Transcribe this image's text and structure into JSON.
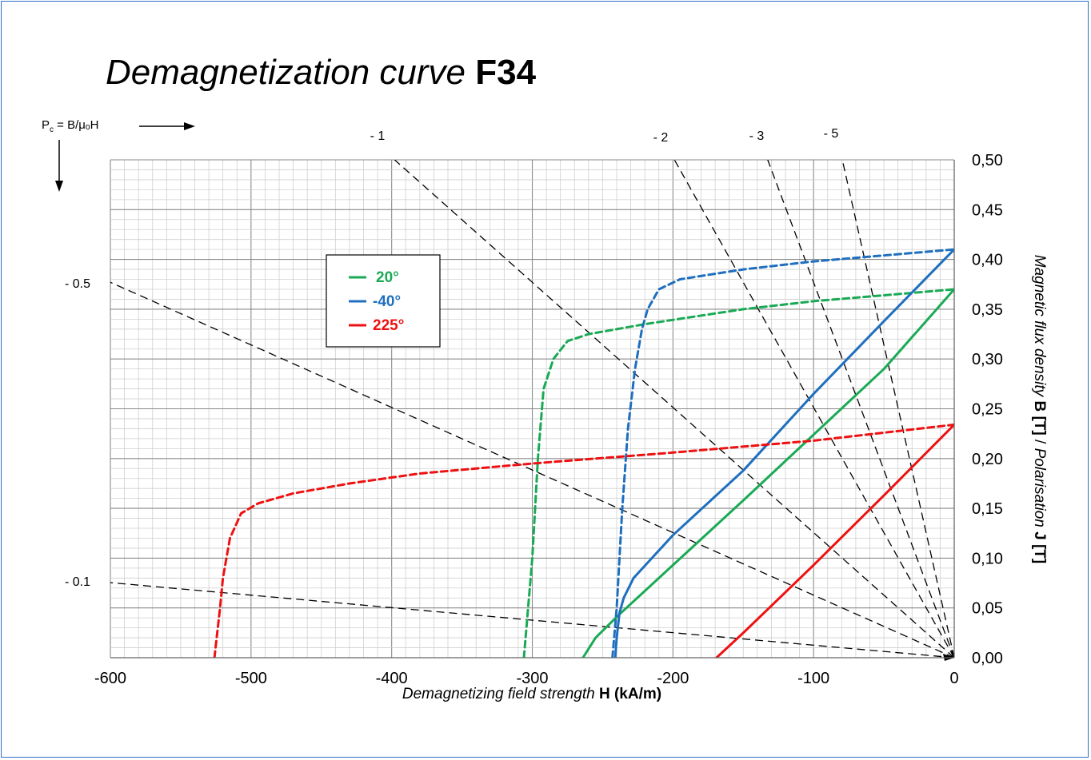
{
  "title": {
    "italic": "Demagnetization curve",
    "bold": "F34"
  },
  "pc_label": {
    "prefix": "P",
    "sub": "c",
    "suffix": " = B/μₒH"
  },
  "chart_data": {
    "type": "line",
    "title": "Demagnetization curve F34",
    "xlabel": {
      "italic": "Demagnetizing field strength ",
      "bold": "H (kA/m)"
    },
    "ylabel": {
      "italic1": "Magnetic flux density ",
      "bold1": "B [T]",
      "mid": " / ",
      "italic2": "Polarisation ",
      "bold2": "J [T]"
    },
    "xlim": [
      -600,
      0
    ],
    "ylim": [
      0,
      0.5
    ],
    "x_ticks": [
      "-600",
      "-500",
      "-400",
      "-300",
      "-200",
      "-100",
      "0"
    ],
    "y_ticks": [
      "0,00",
      "0,05",
      "0,10",
      "0,15",
      "0,20",
      "0,25",
      "0,30",
      "0,35",
      "0,40",
      "0,45",
      "0,50"
    ],
    "grid": true,
    "legend": {
      "placement": "upper-left",
      "entries": [
        {
          "name": "20°",
          "color": "#1aaa55"
        },
        {
          "name": "-40°",
          "color": "#1f6fbf"
        },
        {
          "name": "225°",
          "color": "#ee1111"
        }
      ]
    },
    "series": [
      {
        "name": "20°",
        "kind": "B",
        "style": "solid",
        "color": "#1aaa55",
        "points": [
          [
            -264,
            0
          ],
          [
            -255,
            0.02
          ],
          [
            -240,
            0.041
          ],
          [
            -200,
            0.093
          ],
          [
            -150,
            0.158
          ],
          [
            -100,
            0.224
          ],
          [
            -50,
            0.29
          ],
          [
            0,
            0.37
          ]
        ]
      },
      {
        "name": "20°",
        "kind": "J",
        "style": "dashed",
        "color": "#1aaa55",
        "points": [
          [
            -306,
            0
          ],
          [
            -300,
            0.1
          ],
          [
            -296,
            0.2
          ],
          [
            -292,
            0.27
          ],
          [
            -285,
            0.3
          ],
          [
            -275,
            0.318
          ],
          [
            -260,
            0.325
          ],
          [
            -220,
            0.335
          ],
          [
            -150,
            0.35
          ],
          [
            -100,
            0.358
          ],
          [
            -50,
            0.364
          ],
          [
            0,
            0.37
          ]
        ]
      },
      {
        "name": "-40°",
        "kind": "B",
        "style": "solid",
        "color": "#1f6fbf",
        "points": [
          [
            -241,
            0
          ],
          [
            -240,
            0.02
          ],
          [
            -238,
            0.045
          ],
          [
            -235,
            0.06
          ],
          [
            -228,
            0.08
          ],
          [
            -215,
            0.1
          ],
          [
            -200,
            0.123
          ],
          [
            -150,
            0.188
          ],
          [
            -100,
            0.265
          ],
          [
            -50,
            0.338
          ],
          [
            0,
            0.41
          ]
        ]
      },
      {
        "name": "-40°",
        "kind": "J",
        "style": "dashed",
        "color": "#1f6fbf",
        "points": [
          [
            -243,
            0
          ],
          [
            -240,
            0.05
          ],
          [
            -236,
            0.15
          ],
          [
            -232,
            0.23
          ],
          [
            -227,
            0.29
          ],
          [
            -222,
            0.33
          ],
          [
            -218,
            0.35
          ],
          [
            -210,
            0.37
          ],
          [
            -195,
            0.38
          ],
          [
            -150,
            0.39
          ],
          [
            -100,
            0.398
          ],
          [
            -50,
            0.404
          ],
          [
            0,
            0.41
          ]
        ]
      },
      {
        "name": "225°",
        "kind": "B",
        "style": "solid",
        "color": "#ee1111",
        "points": [
          [
            -169,
            0
          ],
          [
            -150,
            0.025
          ],
          [
            -100,
            0.093
          ],
          [
            -50,
            0.163
          ],
          [
            0,
            0.234
          ]
        ]
      },
      {
        "name": "225°",
        "kind": "J",
        "style": "dashed",
        "color": "#ee1111",
        "points": [
          [
            -526,
            0
          ],
          [
            -522,
            0.05
          ],
          [
            -520,
            0.08
          ],
          [
            -515,
            0.12
          ],
          [
            -507,
            0.145
          ],
          [
            -495,
            0.155
          ],
          [
            -470,
            0.165
          ],
          [
            -430,
            0.175
          ],
          [
            -380,
            0.185
          ],
          [
            -300,
            0.195
          ],
          [
            -200,
            0.206
          ],
          [
            -100,
            0.218
          ],
          [
            0,
            0.234
          ]
        ]
      }
    ],
    "load_lines": [
      {
        "label": "- 0.1",
        "slope": -0.1
      },
      {
        "label": "- 0.5",
        "slope": -0.5
      },
      {
        "label": "- 1",
        "slope": -1
      },
      {
        "label": "- 2",
        "slope": -2
      },
      {
        "label": "- 3",
        "slope": -3
      },
      {
        "label": "- 5",
        "slope": -5
      }
    ]
  }
}
